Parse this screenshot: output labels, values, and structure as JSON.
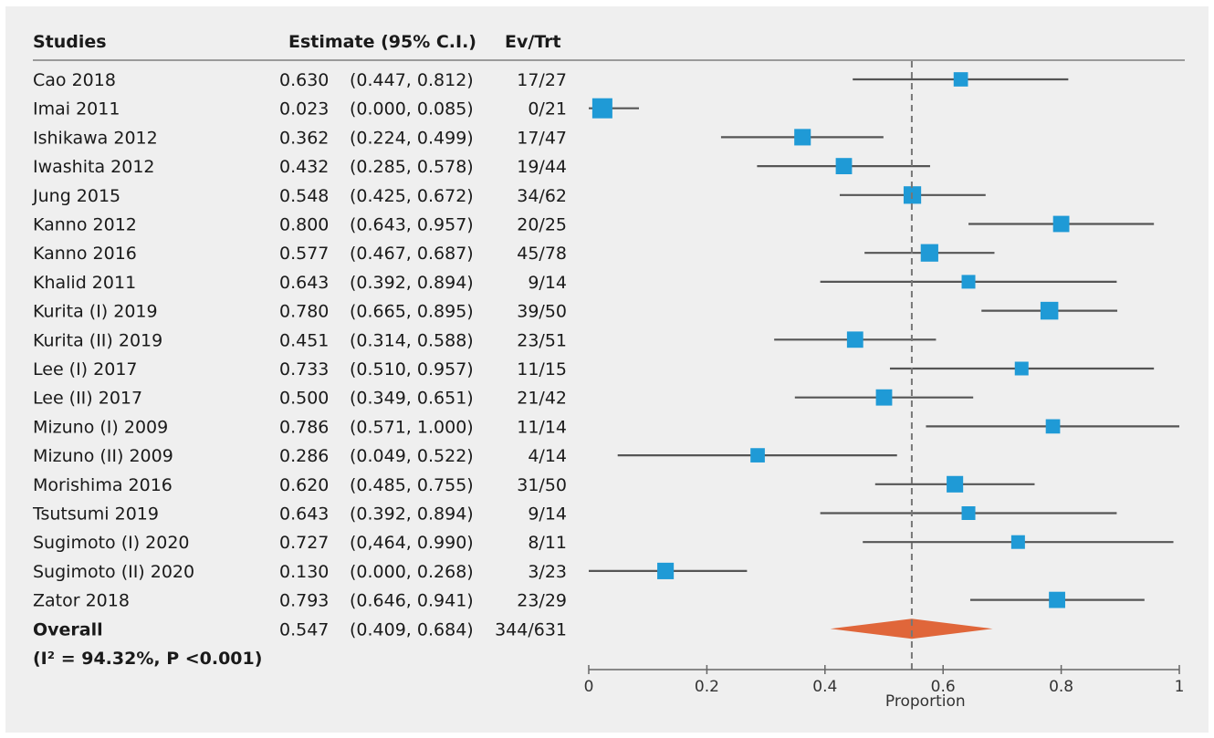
{
  "headers": {
    "studies": "Studies",
    "estimate": "Estimate (95% C.I.)",
    "evtrt": "Ev/Trt"
  },
  "overall": {
    "label": "Overall",
    "stat": "(I² = 94.32%, P <0.001)",
    "est": "0.547",
    "ci": "(0.409, 0.684)",
    "evtrt": "344/631"
  },
  "colors": {
    "marker": "#1f9ad6",
    "diamond": "#e0663a",
    "line": "#555555",
    "refline": "#777777",
    "panel": "#efefef"
  },
  "chart_data": {
    "type": "forest",
    "xlabel": "Proportion",
    "xlim": [
      0,
      1
    ],
    "xticks": [
      "0",
      "0.2",
      "0.4",
      "0.6",
      "0.8",
      "1"
    ],
    "reference_line": 0.547,
    "studies": [
      {
        "name": "Cao 2018",
        "est": "0.630",
        "ci": "(0.447, 0.812)",
        "evtrt": "17/27",
        "value": 0.63,
        "lo": 0.447,
        "hi": 0.812,
        "weight": 0.55
      },
      {
        "name": "Imai 2011",
        "est": "0.023",
        "ci": "(0.000, 0.085)",
        "evtrt": "0/21",
        "value": 0.023,
        "lo": 0.0,
        "hi": 0.085,
        "weight": 1.0
      },
      {
        "name": "Ishikawa 2012",
        "est": "0.362",
        "ci": "(0.224, 0.499)",
        "evtrt": "17/47",
        "value": 0.362,
        "lo": 0.224,
        "hi": 0.499,
        "weight": 0.72
      },
      {
        "name": "Iwashita 2012",
        "est": "0.432",
        "ci": "(0.285, 0.578)",
        "evtrt": "19/44",
        "value": 0.432,
        "lo": 0.285,
        "hi": 0.578,
        "weight": 0.7
      },
      {
        "name": "Jung 2015",
        "est": "0.548",
        "ci": "(0.425, 0.672)",
        "evtrt": "34/62",
        "value": 0.548,
        "lo": 0.425,
        "hi": 0.672,
        "weight": 0.8
      },
      {
        "name": "Kanno 2012",
        "est": "0.800",
        "ci": "(0.643, 0.957)",
        "evtrt": "20/25",
        "value": 0.8,
        "lo": 0.643,
        "hi": 0.957,
        "weight": 0.7
      },
      {
        "name": "Kanno 2016",
        "est": "0.577",
        "ci": "(0.467, 0.687)",
        "evtrt": "45/78",
        "value": 0.577,
        "lo": 0.467,
        "hi": 0.687,
        "weight": 0.8
      },
      {
        "name": "Khalid 2011",
        "est": "0.643",
        "ci": "(0.392, 0.894)",
        "evtrt": "9/14",
        "value": 0.643,
        "lo": 0.392,
        "hi": 0.894,
        "weight": 0.5
      },
      {
        "name": "Kurita (I) 2019",
        "est": "0.780",
        "ci": "(0.665, 0.895)",
        "evtrt": "39/50",
        "value": 0.78,
        "lo": 0.665,
        "hi": 0.895,
        "weight": 0.82
      },
      {
        "name": "Kurita (II) 2019",
        "est": "0.451",
        "ci": "(0.314, 0.588)",
        "evtrt": "23/51",
        "value": 0.451,
        "lo": 0.314,
        "hi": 0.588,
        "weight": 0.7
      },
      {
        "name": "Lee (I) 2017",
        "est": "0.733",
        "ci": "(0.510, 0.957)",
        "evtrt": "11/15",
        "value": 0.733,
        "lo": 0.51,
        "hi": 0.957,
        "weight": 0.5
      },
      {
        "name": "Lee (II) 2017",
        "est": "0.500",
        "ci": "(0.349, 0.651)",
        "evtrt": "21/42",
        "value": 0.5,
        "lo": 0.349,
        "hi": 0.651,
        "weight": 0.7
      },
      {
        "name": "Mizuno (I) 2009",
        "est": "0.786",
        "ci": "(0.571, 1.000)",
        "evtrt": "11/14",
        "value": 0.786,
        "lo": 0.571,
        "hi": 1.0,
        "weight": 0.55
      },
      {
        "name": "Mizuno (II) 2009",
        "est": "0.286",
        "ci": "(0.049, 0.522)",
        "evtrt": "4/14",
        "value": 0.286,
        "lo": 0.049,
        "hi": 0.522,
        "weight": 0.55
      },
      {
        "name": "Morishima 2016",
        "est": "0.620",
        "ci": "(0.485, 0.755)",
        "evtrt": "31/50",
        "value": 0.62,
        "lo": 0.485,
        "hi": 0.755,
        "weight": 0.72
      },
      {
        "name": "Tsutsumi 2019",
        "est": "0.643",
        "ci": "(0.392, 0.894)",
        "evtrt": "9/14",
        "value": 0.643,
        "lo": 0.392,
        "hi": 0.894,
        "weight": 0.5
      },
      {
        "name": "Sugimoto (I) 2020",
        "est": "0.727",
        "ci": "(0,464, 0.990)",
        "evtrt": "8/11",
        "value": 0.727,
        "lo": 0.464,
        "hi": 0.99,
        "weight": 0.5
      },
      {
        "name": "Sugimoto (II) 2020",
        "est": "0.130",
        "ci": "(0.000, 0.268)",
        "evtrt": "3/23",
        "value": 0.13,
        "lo": 0.0,
        "hi": 0.268,
        "weight": 0.72
      },
      {
        "name": "Zator 2018",
        "est": "0.793",
        "ci": "(0.646, 0.941)",
        "evtrt": "23/29",
        "value": 0.793,
        "lo": 0.646,
        "hi": 0.941,
        "weight": 0.7
      }
    ],
    "summary": {
      "value": 0.547,
      "lo": 0.409,
      "hi": 0.684
    }
  }
}
